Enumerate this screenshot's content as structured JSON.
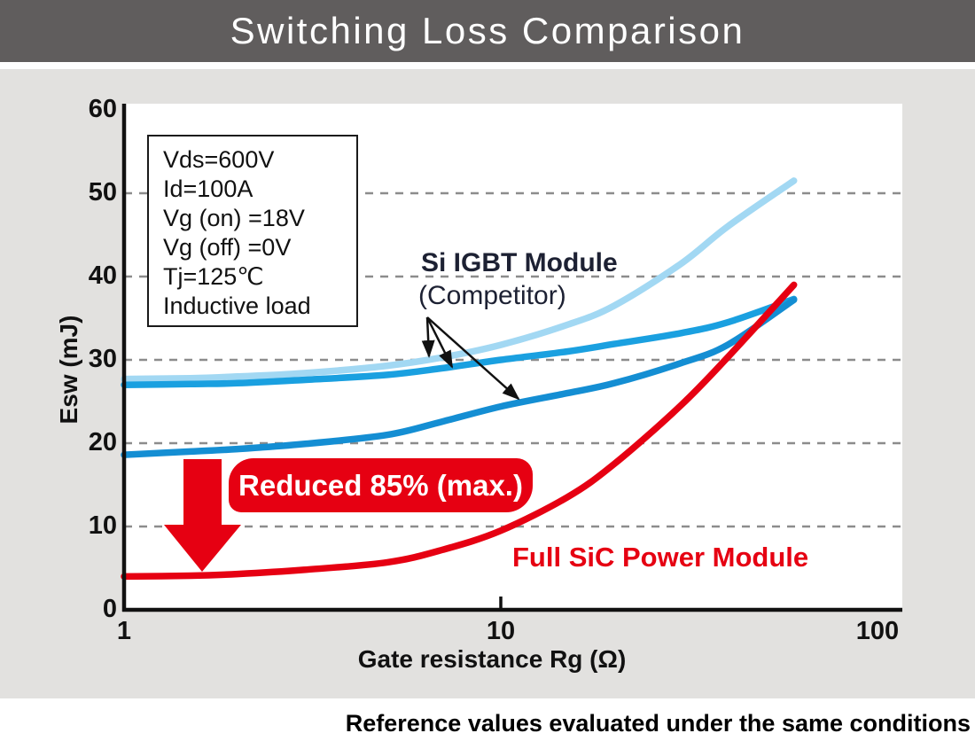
{
  "header": {
    "title": "Switching Loss Comparison"
  },
  "footer": {
    "note": "Reference values evaluated under the same conditions"
  },
  "conditions": {
    "lines": [
      "Vds=600V",
      "Id=100A",
      "Vg (on) =18V",
      "Vg (off) =0V",
      "Tj=125℃",
      "Inductive load"
    ]
  },
  "annotations": {
    "igbt_label_line1": "Si IGBT Module",
    "igbt_label_line2": "(Competitor)",
    "sic_label": "Full SiC Power Module",
    "badge_text": "Reduced 85% (max.)"
  },
  "colors": {
    "header_bg": "#605d5d",
    "panel_bg": "#e2e1df",
    "red": "#e60012",
    "grid": "#8c8c8c",
    "axis": "#111111",
    "igbt_text": "#1d2133"
  },
  "chart_data": {
    "type": "line",
    "title": "Switching Loss Comparison",
    "xlabel": "Gate resistance Rg (Ω)",
    "ylabel": "Esw (mJ)",
    "x_scale": "log",
    "xlim": [
      1,
      100
    ],
    "ylim": [
      0,
      60
    ],
    "x_ticks": [
      1,
      10,
      100
    ],
    "y_ticks": [
      0,
      10,
      20,
      30,
      40,
      50,
      60
    ],
    "grid": "horizontal dashed at y=10..50",
    "legend_position": "inline curve labels",
    "x": [
      1,
      1.5,
      2,
      3,
      5,
      7,
      10,
      15,
      20,
      30,
      40,
      60
    ],
    "series": [
      {
        "name": "Si IGBT Module (Competitor) - curve 1",
        "color": "#a2d8f3",
        "values": [
          27.7,
          27.8,
          28.0,
          28.4,
          29.3,
          30.3,
          31.8,
          34.2,
          36.5,
          41.5,
          46.0,
          51.5
        ]
      },
      {
        "name": "Si IGBT Module (Competitor) - curve 2",
        "color": "#1aa0e0",
        "values": [
          27.0,
          27.1,
          27.2,
          27.6,
          28.2,
          29.0,
          30.0,
          31.0,
          31.9,
          33.2,
          34.5,
          37.3
        ]
      },
      {
        "name": "Si IGBT Module (Competitor) - curve 3",
        "color": "#148ed3",
        "values": [
          18.6,
          19.0,
          19.3,
          19.9,
          21.0,
          22.6,
          24.4,
          26.0,
          27.2,
          29.6,
          31.8,
          37.2
        ]
      },
      {
        "name": "Full SiC Power Module",
        "color": "#e60012",
        "values": [
          4.0,
          4.1,
          4.3,
          4.8,
          5.7,
          7.2,
          9.5,
          13.5,
          17.5,
          24.5,
          30.3,
          39.0
        ]
      }
    ]
  }
}
